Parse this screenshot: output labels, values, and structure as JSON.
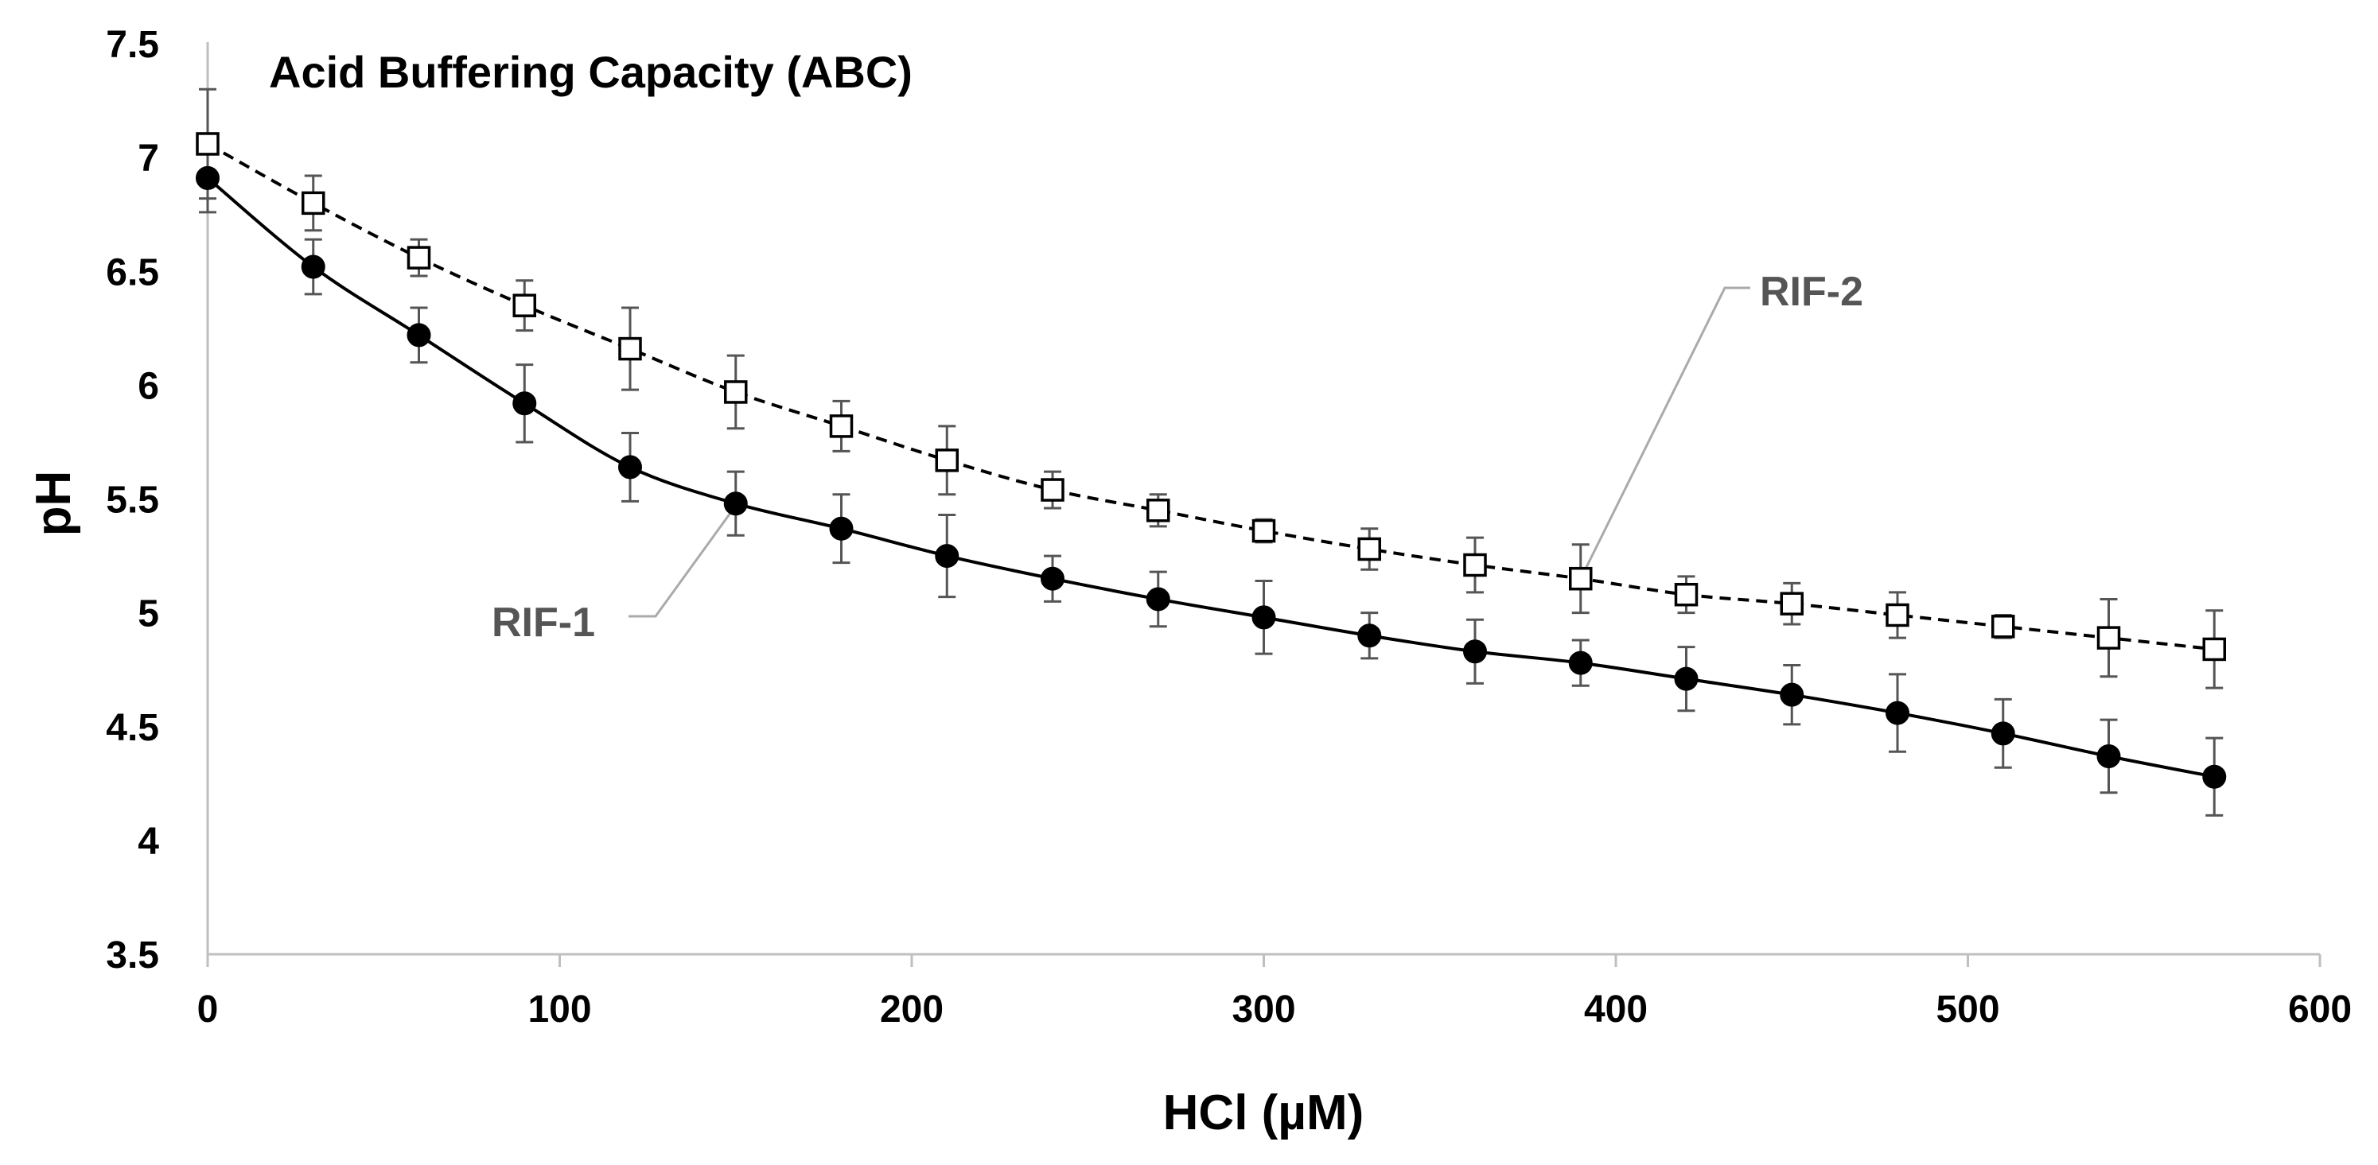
{
  "chart_data": {
    "type": "line",
    "title": "Acid Buffering Capacity (ABC)",
    "xlabel": "HCl (µM)",
    "ylabel": "pH",
    "xlim": [
      0,
      600
    ],
    "ylim": [
      3.5,
      7.5
    ],
    "xticks": [
      0,
      100,
      200,
      300,
      400,
      500,
      600
    ],
    "yticks": [
      3.5,
      4,
      4.5,
      5,
      5.5,
      6,
      6.5,
      7,
      7.5
    ],
    "xtick_labels": [
      "0",
      "100",
      "200",
      "300",
      "400",
      "500",
      "600"
    ],
    "ytick_labels": [
      "3.5",
      "4",
      "4.5",
      "5",
      "5.5",
      "6",
      "6.5",
      "7",
      "7.5"
    ],
    "grid": false,
    "x": [
      0,
      30,
      60,
      90,
      120,
      150,
      180,
      210,
      240,
      270,
      300,
      330,
      360,
      390,
      420,
      450,
      480,
      510,
      540,
      570
    ],
    "series": [
      {
        "name": "RIF-1",
        "label": "RIF-1",
        "marker": "filled-circle",
        "line_style": "solid",
        "values": [
          6.91,
          6.52,
          6.22,
          5.92,
          5.64,
          5.48,
          5.37,
          5.25,
          5.15,
          5.06,
          4.98,
          4.9,
          4.83,
          4.78,
          4.71,
          4.64,
          4.56,
          4.47,
          4.37,
          4.28
        ],
        "errors": [
          0.15,
          0.12,
          0.12,
          0.17,
          0.15,
          0.14,
          0.15,
          0.18,
          0.1,
          0.12,
          0.16,
          0.1,
          0.14,
          0.1,
          0.14,
          0.13,
          0.17,
          0.15,
          0.16,
          0.17
        ],
        "label_point_index": 5
      },
      {
        "name": "RIF-2",
        "label": "RIF-2",
        "marker": "open-square",
        "line_style": "dashed",
        "values": [
          7.06,
          6.8,
          6.56,
          6.35,
          6.16,
          5.97,
          5.82,
          5.67,
          5.54,
          5.45,
          5.36,
          5.28,
          5.21,
          5.15,
          5.08,
          5.04,
          4.99,
          4.94,
          4.89,
          4.84
        ],
        "errors": [
          0.24,
          0.12,
          0.08,
          0.11,
          0.18,
          0.16,
          0.11,
          0.15,
          0.08,
          0.07,
          0.05,
          0.09,
          0.12,
          0.15,
          0.08,
          0.09,
          0.1,
          0.05,
          0.17,
          0.17
        ],
        "label_point_index": 13
      }
    ]
  }
}
